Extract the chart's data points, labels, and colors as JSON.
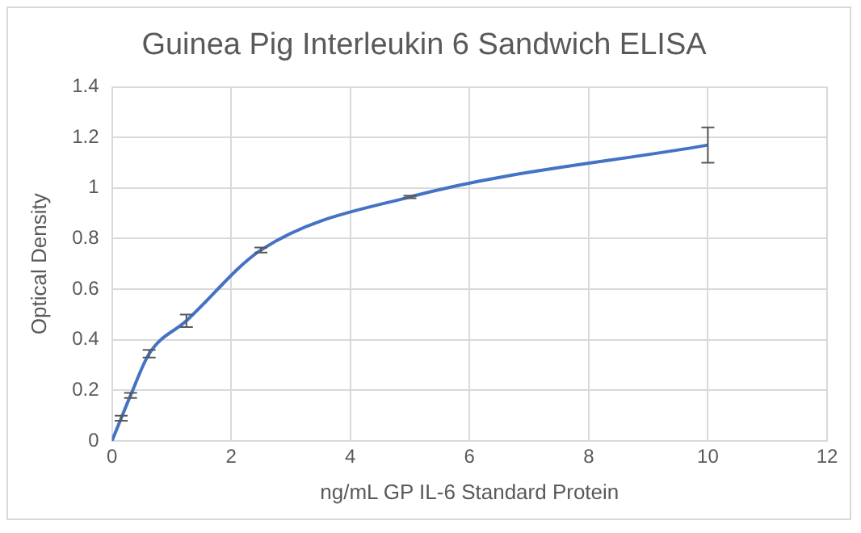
{
  "chart_data": {
    "type": "line",
    "title": "Guinea Pig Interleukin 6 Sandwich ELISA",
    "xlabel": "ng/mL GP IL-6 Standard Protein",
    "ylabel": "Optical Density",
    "x": [
      0,
      0.156,
      0.3125,
      0.625,
      1.25,
      2.5,
      5,
      10
    ],
    "series": [
      {
        "color": "#4472c4",
        "values": [
          0,
          0.09,
          0.18,
          0.345,
          0.475,
          0.755,
          0.965,
          1.17
        ],
        "errors": [
          null,
          0.01,
          0.01,
          0.015,
          0.025,
          0.01,
          0.005,
          0.07
        ]
      }
    ],
    "xlim": [
      0,
      12
    ],
    "xticks": [
      0,
      2,
      4,
      6,
      8,
      10,
      12
    ],
    "ylim": [
      0,
      1.4
    ],
    "yticks": [
      0,
      0.2,
      0.4,
      0.6,
      0.8,
      1,
      1.2,
      1.4
    ],
    "grid": true,
    "legend": false,
    "marker": "none",
    "line_style": "solid"
  }
}
